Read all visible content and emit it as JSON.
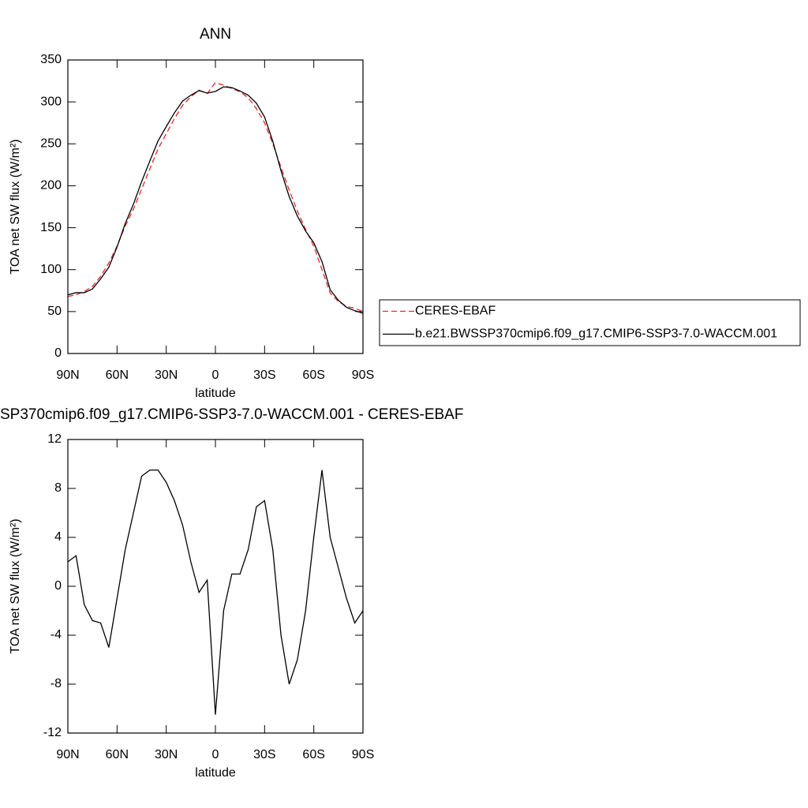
{
  "chart_data": [
    {
      "type": "line",
      "title": "ANN",
      "xlabel": "latitude",
      "ylabel": "TOA net SW flux (W/m²)",
      "x": [
        90,
        85,
        80,
        75,
        70,
        65,
        60,
        55,
        50,
        45,
        40,
        35,
        30,
        25,
        20,
        15,
        10,
        5,
        0,
        -5,
        -10,
        -15,
        -20,
        -25,
        -30,
        -35,
        -40,
        -45,
        -50,
        -55,
        -60,
        -65,
        -70,
        -75,
        -80,
        -85,
        -90
      ],
      "series": [
        {
          "name": "CERES-EBAF",
          "color": "#e8262b",
          "line_style": "dashed",
          "values": [
            68,
            70,
            74,
            80,
            92,
            108,
            128,
            152,
            172,
            196,
            220,
            244,
            262,
            280,
            296,
            306,
            314,
            310,
            323,
            320,
            316,
            312,
            305,
            292,
            275,
            250,
            222,
            195,
            170,
            148,
            128,
            100,
            72,
            62,
            56,
            54,
            50
          ]
        },
        {
          "name": "b.e21.BWSSP370cmip6.f09_g17.CMIP6-SSP3-7.0-WACCM.001",
          "color": "#000000",
          "line_style": "solid",
          "values": [
            70,
            72.5,
            72.5,
            77,
            89,
            103,
            127,
            155,
            178,
            205,
            229.5,
            253.5,
            270.5,
            287,
            301,
            308,
            313.5,
            310.5,
            312.5,
            318,
            317,
            313,
            308,
            298.5,
            282,
            253,
            218,
            187,
            164,
            146,
            132,
            109.5,
            76,
            63.5,
            55,
            51,
            48
          ]
        }
      ],
      "xlim": [
        90,
        -90
      ],
      "xticks": [
        {
          "value": 90,
          "label": "90N"
        },
        {
          "value": 60,
          "label": "60N"
        },
        {
          "value": 30,
          "label": "30N"
        },
        0,
        {
          "value": -30,
          "label": "30S"
        },
        {
          "value": -60,
          "label": "60S"
        },
        {
          "value": -90,
          "label": "90S"
        }
      ],
      "ylim": [
        0,
        350
      ],
      "yticks": [
        0,
        50,
        100,
        150,
        200,
        250,
        300,
        350
      ],
      "legend": "right"
    },
    {
      "type": "line",
      "title": "SP370cmip6.f09_g17.CMIP6-SSP3-7.0-WACCM.001 - CERES-EBAF",
      "xlabel": "latitude",
      "ylabel": "TOA net SW flux (W/m²)",
      "x": [
        90,
        85,
        80,
        75,
        70,
        65,
        60,
        55,
        50,
        45,
        40,
        35,
        30,
        25,
        20,
        15,
        10,
        5,
        0,
        -5,
        -10,
        -15,
        -20,
        -25,
        -30,
        -35,
        -40,
        -45,
        -50,
        -55,
        -60,
        -65,
        -70,
        -75,
        -80,
        -85,
        -90
      ],
      "series": [
        {
          "color": "#000000",
          "line_style": "solid",
          "values": [
            2,
            2.5,
            -1.5,
            -2.8,
            -3,
            -5,
            -1,
            3,
            6,
            9,
            9.5,
            9.5,
            8.5,
            7,
            5,
            2,
            -0.5,
            0.5,
            -10.5,
            -2,
            1,
            1,
            3,
            6.5,
            7,
            3,
            -4,
            -8,
            -6,
            -2,
            4,
            9.5,
            4,
            1.5,
            -1,
            -3,
            -2
          ]
        }
      ],
      "xlim": [
        90,
        -90
      ],
      "xticks": [
        {
          "value": 90,
          "label": "90N"
        },
        {
          "value": 60,
          "label": "60N"
        },
        {
          "value": 30,
          "label": "30N"
        },
        0,
        {
          "value": -30,
          "label": "30S"
        },
        {
          "value": -60,
          "label": "60S"
        },
        {
          "value": -90,
          "label": "90S"
        }
      ],
      "ylim": [
        -12,
        12
      ],
      "yticks": [
        -12,
        -8,
        -4,
        0,
        4,
        8,
        12
      ]
    }
  ]
}
